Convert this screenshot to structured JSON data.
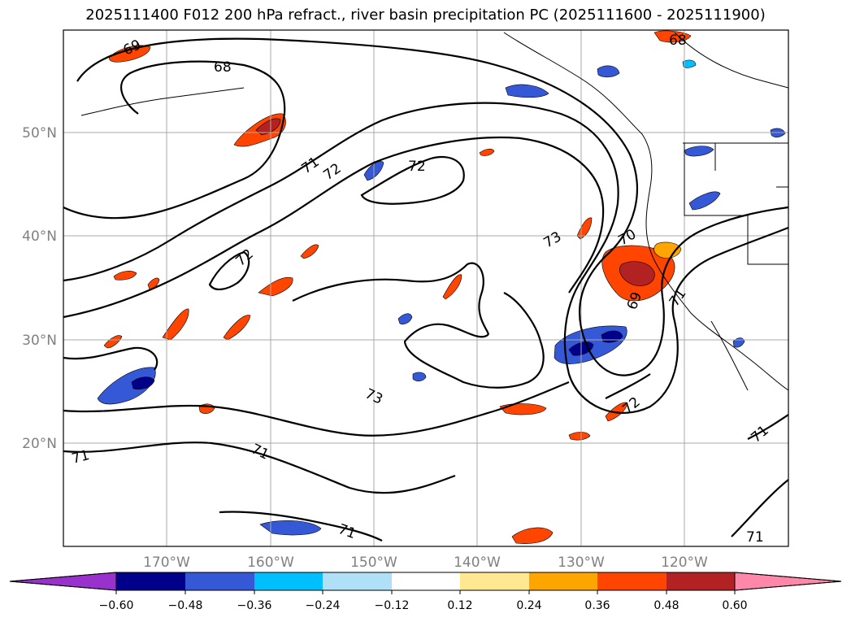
{
  "title": "2025111400 F012 200 hPa refract., river basin precipitation PC (2025111600 - 2025111900)",
  "map": {
    "lat_labels": [
      {
        "text": "50°N",
        "lat": 50
      },
      {
        "text": "40°N",
        "lat": 40
      },
      {
        "text": "30°N",
        "lat": 30
      },
      {
        "text": "20°N",
        "lat": 20
      }
    ],
    "lon_labels": [
      {
        "text": "170°W",
        "lon": -170
      },
      {
        "text": "160°W",
        "lon": -160
      },
      {
        "text": "150°W",
        "lon": -150
      },
      {
        "text": "140°W",
        "lon": -140
      },
      {
        "text": "130°W",
        "lon": -130
      },
      {
        "text": "120°W",
        "lon": -120
      }
    ],
    "contour_labels": [
      "69",
      "68",
      "68",
      "71",
      "72",
      "72",
      "72",
      "73",
      "73",
      "70",
      "69",
      "71",
      "71",
      "71",
      "71",
      "72",
      "71",
      "71"
    ],
    "gridline_color": "#a9a9a9",
    "label_color": "#808080"
  },
  "colorbar": {
    "tick_labels": [
      "−0.60",
      "−0.48",
      "−0.36",
      "−0.24",
      "−0.12",
      "0.12",
      "0.24",
      "0.36",
      "0.48",
      "0.60"
    ],
    "colors": [
      "#9932cc",
      "#00008b",
      "#3458d6",
      "#00bfff",
      "#b0e0f8",
      "#ffffff",
      "#ffe890",
      "#ffa500",
      "#ff4500",
      "#b22222",
      "#ff88aa"
    ]
  }
}
